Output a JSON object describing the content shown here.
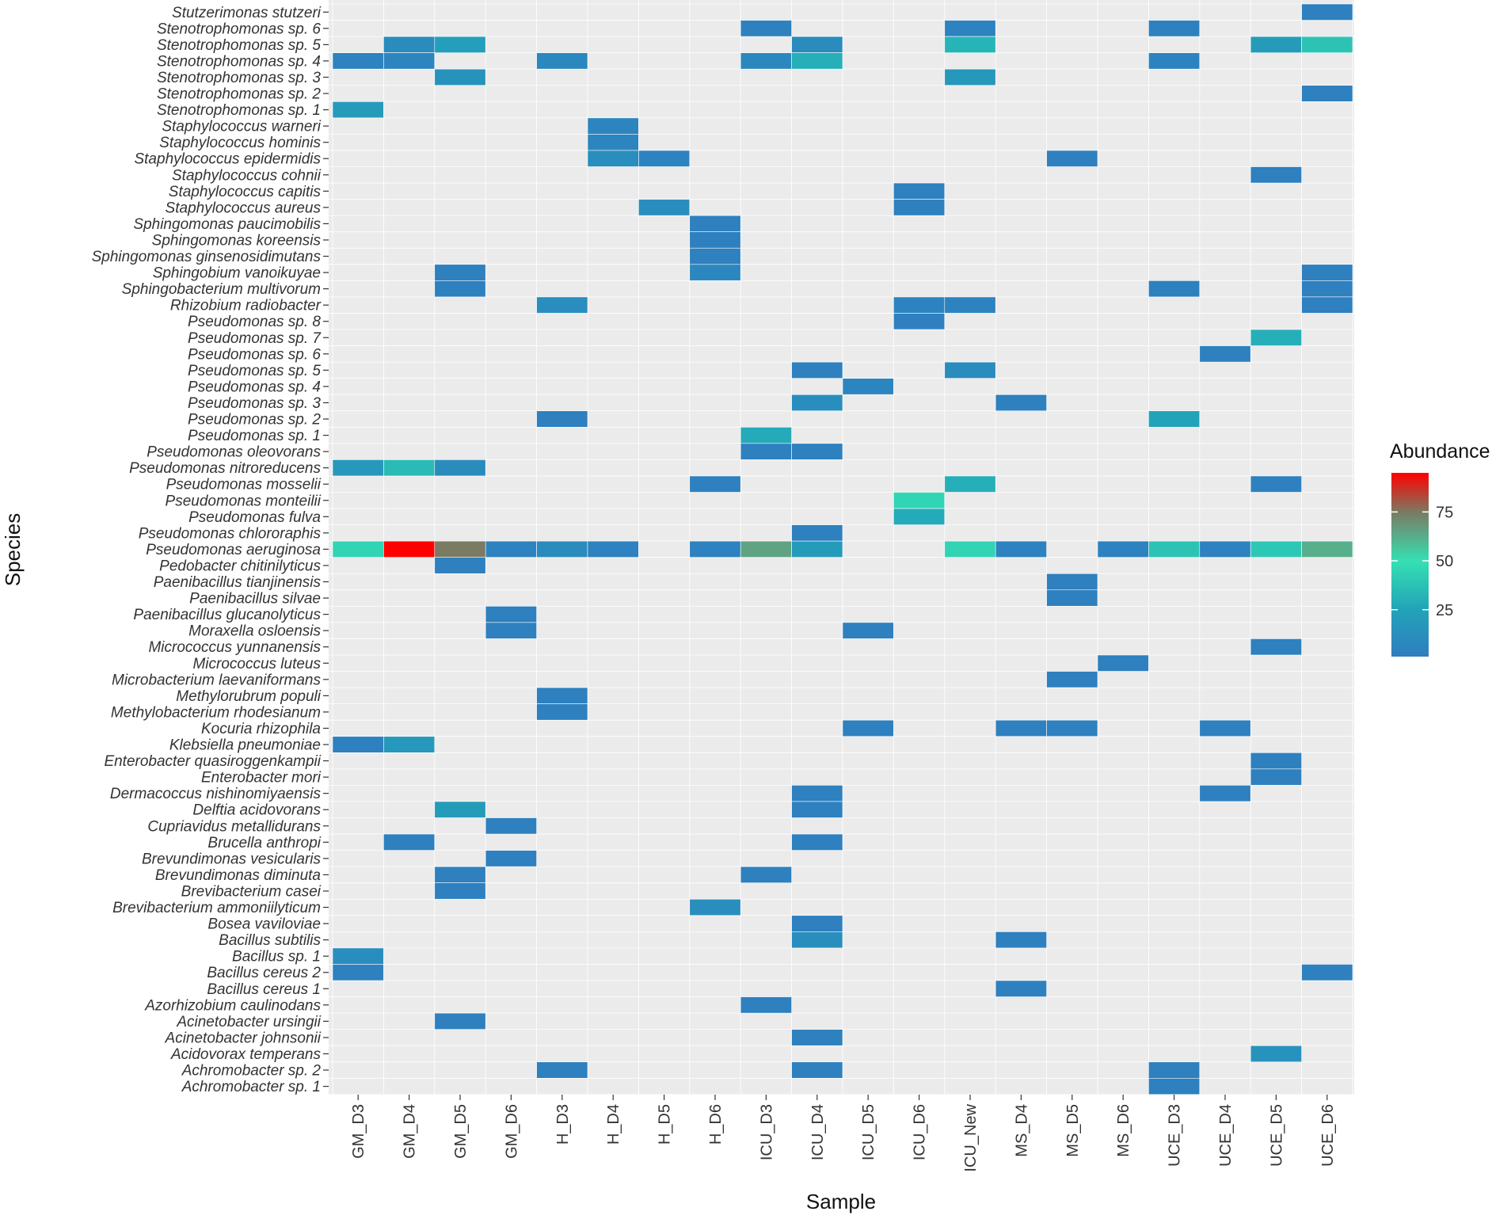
{
  "chart_data": {
    "type": "heatmap",
    "title": "",
    "xlabel": "Sample",
    "ylabel": "Species",
    "grid": true,
    "legend": {
      "title": "Abundance",
      "placement": "right",
      "range": [
        1,
        95
      ],
      "ticks": [
        25,
        50,
        75
      ],
      "tick_labels": [
        "25",
        "50",
        "75"
      ],
      "colors": [
        {
          "value": 1,
          "color": "#2f7dc0"
        },
        {
          "value": 25,
          "color": "#22a3b9"
        },
        {
          "value": 50,
          "color": "#35e0b2"
        },
        {
          "value": 75,
          "color": "#7b7a62"
        },
        {
          "value": 95,
          "color": "#ff0000"
        }
      ]
    },
    "samples": [
      "GM_D3",
      "GM_D4",
      "GM_D5",
      "GM_D6",
      "H_D3",
      "H_D4",
      "H_D5",
      "H_D6",
      "ICU_D3",
      "ICU_D4",
      "ICU_D5",
      "ICU_D6",
      "ICU_New",
      "MS_D4",
      "MS_D5",
      "MS_D6",
      "UCE_D3",
      "UCE_D4",
      "UCE_D5",
      "UCE_D6"
    ],
    "species": [
      "Stutzerimonas stutzeri",
      "Stenotrophomonas sp. 6",
      "Stenotrophomonas sp. 5",
      "Stenotrophomonas sp. 4",
      "Stenotrophomonas sp. 3",
      "Stenotrophomonas sp. 2",
      "Stenotrophomonas sp. 1",
      "Staphylococcus warneri",
      "Staphylococcus hominis",
      "Staphylococcus epidermidis",
      "Staphylococcus cohnii",
      "Staphylococcus capitis",
      "Staphylococcus aureus",
      "Sphingomonas paucimobilis",
      "Sphingomonas koreensis",
      "Sphingomonas ginsenosidimutans",
      "Sphingobium vanoikuyae",
      "Sphingobacterium multivorum",
      "Rhizobium radiobacter",
      "Pseudomonas sp. 8",
      "Pseudomonas sp. 7",
      "Pseudomonas sp. 6",
      "Pseudomonas sp. 5",
      "Pseudomonas sp. 4",
      "Pseudomonas sp. 3",
      "Pseudomonas sp. 2",
      "Pseudomonas sp. 1",
      "Pseudomonas oleovorans",
      "Pseudomonas nitroreducens",
      "Pseudomonas mosselii",
      "Pseudomonas monteilii",
      "Pseudomonas fulva",
      "Pseudomonas chlororaphis",
      "Pseudomonas aeruginosa",
      "Pedobacter chitinilyticus",
      "Paenibacillus tianjinensis",
      "Paenibacillus silvae",
      "Paenibacillus glucanolyticus",
      "Moraxella osloensis",
      "Micrococcus yunnanensis",
      "Micrococcus luteus",
      "Microbacterium laevaniformans",
      "Methylorubrum populi",
      "Methylobacterium rhodesianum",
      "Kocuria rhizophila",
      "Klebsiella pneumoniae",
      "Enterobacter quasiroggenkampii",
      "Enterobacter mori",
      "Dermacoccus nishinomiyaensis",
      "Delftia acidovorans",
      "Cupriavidus metallidurans",
      "Brucella anthropi",
      "Brevundimonas vesicularis",
      "Brevundimonas diminuta",
      "Brevibacterium casei",
      "Brevibacterium ammoniilyticum",
      "Bosea vaviloviae",
      "Bacillus subtilis",
      "Bacillus sp. 1",
      "Bacillus cereus 2",
      "Bacillus cereus 1",
      "Azorhizobium caulinodans",
      "Acinetobacter ursingii",
      "Acinetobacter johnsonii",
      "Acidovorax temperans",
      "Achromobacter sp. 2",
      "Achromobacter sp. 1"
    ],
    "cells": [
      {
        "species": "Stutzerimonas stutzeri",
        "sample": "UCE_D6",
        "value": 3
      },
      {
        "species": "Stenotrophomonas sp. 6",
        "sample": "ICU_D3",
        "value": 3
      },
      {
        "species": "Stenotrophomonas sp. 6",
        "sample": "ICU_New",
        "value": 5
      },
      {
        "species": "Stenotrophomonas sp. 6",
        "sample": "UCE_D3",
        "value": 3
      },
      {
        "species": "Stenotrophomonas sp. 5",
        "sample": "GM_D4",
        "value": 10
      },
      {
        "species": "Stenotrophomonas sp. 5",
        "sample": "GM_D5",
        "value": 22
      },
      {
        "species": "Stenotrophomonas sp. 5",
        "sample": "ICU_D4",
        "value": 10
      },
      {
        "species": "Stenotrophomonas sp. 5",
        "sample": "ICU_New",
        "value": 32
      },
      {
        "species": "Stenotrophomonas sp. 5",
        "sample": "UCE_D5",
        "value": 20
      },
      {
        "species": "Stenotrophomonas sp. 5",
        "sample": "UCE_D6",
        "value": 38
      },
      {
        "species": "Stenotrophomonas sp. 4",
        "sample": "GM_D3",
        "value": 4
      },
      {
        "species": "Stenotrophomonas sp. 4",
        "sample": "GM_D4",
        "value": 6
      },
      {
        "species": "Stenotrophomonas sp. 4",
        "sample": "H_D3",
        "value": 8
      },
      {
        "species": "Stenotrophomonas sp. 4",
        "sample": "ICU_D3",
        "value": 8
      },
      {
        "species": "Stenotrophomonas sp. 4",
        "sample": "ICU_D4",
        "value": 30
      },
      {
        "species": "Stenotrophomonas sp. 4",
        "sample": "UCE_D3",
        "value": 5
      },
      {
        "species": "Stenotrophomonas sp. 3",
        "sample": "GM_D5",
        "value": 15
      },
      {
        "species": "Stenotrophomonas sp. 3",
        "sample": "ICU_New",
        "value": 18
      },
      {
        "species": "Stenotrophomonas sp. 2",
        "sample": "UCE_D6",
        "value": 3
      },
      {
        "species": "Stenotrophomonas sp. 1",
        "sample": "GM_D3",
        "value": 20
      },
      {
        "species": "Staphylococcus warneri",
        "sample": "H_D4",
        "value": 6
      },
      {
        "species": "Staphylococcus hominis",
        "sample": "H_D4",
        "value": 6
      },
      {
        "species": "Staphylococcus epidermidis",
        "sample": "H_D4",
        "value": 12
      },
      {
        "species": "Staphylococcus epidermidis",
        "sample": "H_D5",
        "value": 5
      },
      {
        "species": "Staphylococcus epidermidis",
        "sample": "MS_D5",
        "value": 3
      },
      {
        "species": "Staphylococcus cohnii",
        "sample": "UCE_D5",
        "value": 3
      },
      {
        "species": "Staphylococcus capitis",
        "sample": "ICU_D6",
        "value": 3
      },
      {
        "species": "Staphylococcus aureus",
        "sample": "H_D5",
        "value": 12
      },
      {
        "species": "Staphylococcus aureus",
        "sample": "ICU_D6",
        "value": 3
      },
      {
        "species": "Sphingomonas paucimobilis",
        "sample": "H_D6",
        "value": 3
      },
      {
        "species": "Sphingomonas koreensis",
        "sample": "H_D6",
        "value": 3
      },
      {
        "species": "Sphingomonas ginsenosidimutans",
        "sample": "H_D6",
        "value": 3
      },
      {
        "species": "Sphingobium vanoikuyae",
        "sample": "GM_D5",
        "value": 3
      },
      {
        "species": "Sphingobium vanoikuyae",
        "sample": "H_D6",
        "value": 8
      },
      {
        "species": "Sphingobium vanoikuyae",
        "sample": "UCE_D6",
        "value": 3
      },
      {
        "species": "Sphingobacterium multivorum",
        "sample": "GM_D5",
        "value": 3
      },
      {
        "species": "Sphingobacterium multivorum",
        "sample": "UCE_D3",
        "value": 3
      },
      {
        "species": "Sphingobacterium multivorum",
        "sample": "UCE_D6",
        "value": 3
      },
      {
        "species": "Rhizobium radiobacter",
        "sample": "H_D3",
        "value": 12
      },
      {
        "species": "Rhizobium radiobacter",
        "sample": "ICU_D6",
        "value": 5
      },
      {
        "species": "Rhizobium radiobacter",
        "sample": "ICU_New",
        "value": 5
      },
      {
        "species": "Rhizobium radiobacter",
        "sample": "UCE_D6",
        "value": 3
      },
      {
        "species": "Pseudomonas sp. 8",
        "sample": "ICU_D6",
        "value": 3
      },
      {
        "species": "Pseudomonas sp. 7",
        "sample": "UCE_D5",
        "value": 30
      },
      {
        "species": "Pseudomonas sp. 6",
        "sample": "UCE_D4",
        "value": 3
      },
      {
        "species": "Pseudomonas sp. 5",
        "sample": "ICU_D4",
        "value": 3
      },
      {
        "species": "Pseudomonas sp. 5",
        "sample": "ICU_New",
        "value": 10
      },
      {
        "species": "Pseudomonas sp. 4",
        "sample": "ICU_D5",
        "value": 6
      },
      {
        "species": "Pseudomonas sp. 3",
        "sample": "ICU_D4",
        "value": 12
      },
      {
        "species": "Pseudomonas sp. 3",
        "sample": "MS_D4",
        "value": 3
      },
      {
        "species": "Pseudomonas sp. 2",
        "sample": "H_D3",
        "value": 3
      },
      {
        "species": "Pseudomonas sp. 2",
        "sample": "UCE_D3",
        "value": 25
      },
      {
        "species": "Pseudomonas sp. 1",
        "sample": "ICU_D3",
        "value": 28
      },
      {
        "species": "Pseudomonas oleovorans",
        "sample": "ICU_D3",
        "value": 3
      },
      {
        "species": "Pseudomonas oleovorans",
        "sample": "ICU_D4",
        "value": 3
      },
      {
        "species": "Pseudomonas nitroreducens",
        "sample": "GM_D3",
        "value": 18
      },
      {
        "species": "Pseudomonas nitroreducens",
        "sample": "GM_D4",
        "value": 35
      },
      {
        "species": "Pseudomonas nitroreducens",
        "sample": "GM_D5",
        "value": 10
      },
      {
        "species": "Pseudomonas mosselii",
        "sample": "H_D6",
        "value": 3
      },
      {
        "species": "Pseudomonas mosselii",
        "sample": "ICU_New",
        "value": 30
      },
      {
        "species": "Pseudomonas mosselii",
        "sample": "UCE_D5",
        "value": 3
      },
      {
        "species": "Pseudomonas monteilii",
        "sample": "ICU_D6",
        "value": 45
      },
      {
        "species": "Pseudomonas fulva",
        "sample": "ICU_D6",
        "value": 28
      },
      {
        "species": "Pseudomonas chlororaphis",
        "sample": "ICU_D4",
        "value": 3
      },
      {
        "species": "Pseudomonas aeruginosa",
        "sample": "GM_D3",
        "value": 45
      },
      {
        "species": "Pseudomonas aeruginosa",
        "sample": "GM_D4",
        "value": 95
      },
      {
        "species": "Pseudomonas aeruginosa",
        "sample": "GM_D5",
        "value": 75
      },
      {
        "species": "Pseudomonas aeruginosa",
        "sample": "GM_D6",
        "value": 4
      },
      {
        "species": "Pseudomonas aeruginosa",
        "sample": "H_D3",
        "value": 10
      },
      {
        "species": "Pseudomonas aeruginosa",
        "sample": "H_D4",
        "value": 4
      },
      {
        "species": "Pseudomonas aeruginosa",
        "sample": "H_D6",
        "value": 4
      },
      {
        "species": "Pseudomonas aeruginosa",
        "sample": "ICU_D3",
        "value": 65
      },
      {
        "species": "Pseudomonas aeruginosa",
        "sample": "ICU_D4",
        "value": 20
      },
      {
        "species": "Pseudomonas aeruginosa",
        "sample": "ICU_New",
        "value": 45
      },
      {
        "species": "Pseudomonas aeruginosa",
        "sample": "MS_D4",
        "value": 4
      },
      {
        "species": "Pseudomonas aeruginosa",
        "sample": "MS_D6",
        "value": 4
      },
      {
        "species": "Pseudomonas aeruginosa",
        "sample": "UCE_D3",
        "value": 38
      },
      {
        "species": "Pseudomonas aeruginosa",
        "sample": "UCE_D4",
        "value": 4
      },
      {
        "species": "Pseudomonas aeruginosa",
        "sample": "UCE_D5",
        "value": 40
      },
      {
        "species": "Pseudomonas aeruginosa",
        "sample": "UCE_D6",
        "value": 62
      },
      {
        "species": "Pedobacter chitinilyticus",
        "sample": "GM_D5",
        "value": 3
      },
      {
        "species": "Paenibacillus tianjinensis",
        "sample": "MS_D5",
        "value": 3
      },
      {
        "species": "Paenibacillus silvae",
        "sample": "MS_D5",
        "value": 3
      },
      {
        "species": "Paenibacillus glucanolyticus",
        "sample": "GM_D6",
        "value": 3
      },
      {
        "species": "Moraxella osloensis",
        "sample": "GM_D6",
        "value": 3
      },
      {
        "species": "Moraxella osloensis",
        "sample": "ICU_D5",
        "value": 3
      },
      {
        "species": "Micrococcus yunnanensis",
        "sample": "UCE_D5",
        "value": 3
      },
      {
        "species": "Micrococcus luteus",
        "sample": "MS_D6",
        "value": 3
      },
      {
        "species": "Microbacterium laevaniformans",
        "sample": "MS_D5",
        "value": 3
      },
      {
        "species": "Methylorubrum populi",
        "sample": "H_D3",
        "value": 3
      },
      {
        "species": "Methylobacterium rhodesianum",
        "sample": "H_D3",
        "value": 3
      },
      {
        "species": "Kocuria rhizophila",
        "sample": "ICU_D5",
        "value": 3
      },
      {
        "species": "Kocuria rhizophila",
        "sample": "MS_D4",
        "value": 3
      },
      {
        "species": "Kocuria rhizophila",
        "sample": "MS_D5",
        "value": 3
      },
      {
        "species": "Kocuria rhizophila",
        "sample": "UCE_D4",
        "value": 3
      },
      {
        "species": "Klebsiella pneumoniae",
        "sample": "GM_D3",
        "value": 3
      },
      {
        "species": "Klebsiella pneumoniae",
        "sample": "GM_D4",
        "value": 18
      },
      {
        "species": "Enterobacter quasiroggenkampii",
        "sample": "UCE_D5",
        "value": 3
      },
      {
        "species": "Enterobacter mori",
        "sample": "UCE_D5",
        "value": 3
      },
      {
        "species": "Dermacoccus nishinomiyaensis",
        "sample": "ICU_D4",
        "value": 3
      },
      {
        "species": "Dermacoccus nishinomiyaensis",
        "sample": "UCE_D4",
        "value": 3
      },
      {
        "species": "Delftia acidovorans",
        "sample": "GM_D5",
        "value": 20
      },
      {
        "species": "Delftia acidovorans",
        "sample": "ICU_D4",
        "value": 3
      },
      {
        "species": "Cupriavidus metallidurans",
        "sample": "GM_D6",
        "value": 3
      },
      {
        "species": "Brucella anthropi",
        "sample": "GM_D4",
        "value": 3
      },
      {
        "species": "Brucella anthropi",
        "sample": "ICU_D4",
        "value": 3
      },
      {
        "species": "Brevundimonas vesicularis",
        "sample": "GM_D6",
        "value": 3
      },
      {
        "species": "Brevundimonas diminuta",
        "sample": "GM_D5",
        "value": 3
      },
      {
        "species": "Brevundimonas diminuta",
        "sample": "ICU_D3",
        "value": 3
      },
      {
        "species": "Brevibacterium casei",
        "sample": "GM_D5",
        "value": 3
      },
      {
        "species": "Brevibacterium ammoniilyticum",
        "sample": "H_D6",
        "value": 12
      },
      {
        "species": "Bosea vaviloviae",
        "sample": "ICU_D4",
        "value": 3
      },
      {
        "species": "Bacillus subtilis",
        "sample": "ICU_D4",
        "value": 12
      },
      {
        "species": "Bacillus subtilis",
        "sample": "MS_D4",
        "value": 3
      },
      {
        "species": "Bacillus sp. 1",
        "sample": "GM_D3",
        "value": 12
      },
      {
        "species": "Bacillus cereus 2",
        "sample": "GM_D3",
        "value": 3
      },
      {
        "species": "Bacillus cereus 2",
        "sample": "UCE_D6",
        "value": 3
      },
      {
        "species": "Bacillus cereus 1",
        "sample": "MS_D4",
        "value": 3
      },
      {
        "species": "Azorhizobium caulinodans",
        "sample": "ICU_D3",
        "value": 3
      },
      {
        "species": "Acinetobacter ursingii",
        "sample": "GM_D5",
        "value": 3
      },
      {
        "species": "Acinetobacter johnsonii",
        "sample": "ICU_D4",
        "value": 3
      },
      {
        "species": "Acidovorax temperans",
        "sample": "UCE_D5",
        "value": 15
      },
      {
        "species": "Achromobacter sp. 2",
        "sample": "H_D3",
        "value": 3
      },
      {
        "species": "Achromobacter sp. 2",
        "sample": "ICU_D4",
        "value": 3
      },
      {
        "species": "Achromobacter sp. 2",
        "sample": "UCE_D3",
        "value": 3
      },
      {
        "species": "Achromobacter sp. 1",
        "sample": "UCE_D3",
        "value": 3
      }
    ]
  },
  "colors": {
    "panel_background": "#ebebeb",
    "grid_line": "#ffffff",
    "tick_mark": "#333333"
  }
}
